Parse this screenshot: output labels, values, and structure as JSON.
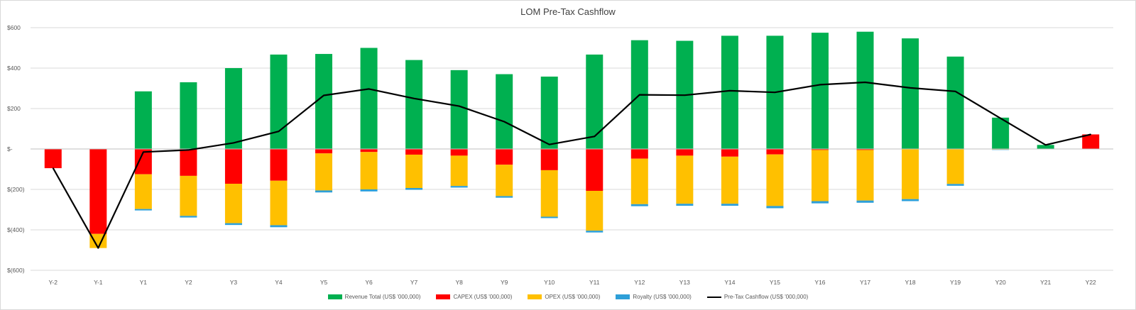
{
  "chart_data": {
    "type": "bar",
    "title": "LOM Pre-Tax Cashflow",
    "stacked": true,
    "categories": [
      "Y-2",
      "Y-1",
      "Y1",
      "Y2",
      "Y3",
      "Y4",
      "Y5",
      "Y6",
      "Y7",
      "Y8",
      "Y9",
      "Y10",
      "Y11",
      "Y12",
      "Y13",
      "Y14",
      "Y15",
      "Y16",
      "Y17",
      "Y18",
      "Y19",
      "Y20",
      "Y21",
      "Y22"
    ],
    "yticks": [
      "$600",
      "$400",
      "$200",
      "$-",
      "$(200)",
      "$(400)",
      "$(600)"
    ],
    "ylim": [
      -600,
      600
    ],
    "grid": true,
    "legend_position": "bottom",
    "series": [
      {
        "name": "Revenue Total (US$ '000,000)",
        "type": "bar",
        "color": "#00B050",
        "values": [
          0,
          0,
          285,
          330,
          400,
          467,
          470,
          500,
          440,
          390,
          370,
          358,
          467,
          538,
          535,
          560,
          560,
          575,
          580,
          547,
          457,
          155,
          20,
          0
        ]
      },
      {
        "name": "CAPEX (US$ '000,000)",
        "type": "bar",
        "color": "#FF0000",
        "values": [
          -95,
          -420,
          -125,
          -133,
          -172,
          -157,
          -22,
          -15,
          -28,
          -33,
          -78,
          -105,
          -207,
          -48,
          -33,
          -38,
          -27,
          -5,
          -5,
          0,
          0,
          0,
          0,
          72
        ]
      },
      {
        "name": "OPEX (US$ '000,000)",
        "type": "bar",
        "color": "#FFC000",
        "values": [
          0,
          -70,
          -172,
          -198,
          -195,
          -220,
          -183,
          -185,
          -165,
          -150,
          -155,
          -230,
          -197,
          -225,
          -238,
          -233,
          -255,
          -253,
          -250,
          -248,
          -173,
          -3,
          0,
          0
        ]
      },
      {
        "name": "Royalty (US$ '000,000)",
        "type": "bar",
        "color": "#2E9FD8",
        "values": [
          0,
          0,
          -7,
          -8,
          -9,
          -10,
          -10,
          -10,
          -9,
          -8,
          -8,
          -7,
          -9,
          -10,
          -10,
          -10,
          -11,
          -11,
          -11,
          -10,
          -9,
          -1,
          0,
          0
        ]
      },
      {
        "name": "Pre-Tax Cashflow (US$ '000,000)",
        "type": "line",
        "color": "#000000",
        "values": [
          -95,
          -490,
          -15,
          -5,
          30,
          87,
          265,
          297,
          250,
          212,
          135,
          22,
          62,
          268,
          266,
          288,
          280,
          318,
          330,
          302,
          285,
          152,
          20,
          72
        ]
      }
    ]
  }
}
